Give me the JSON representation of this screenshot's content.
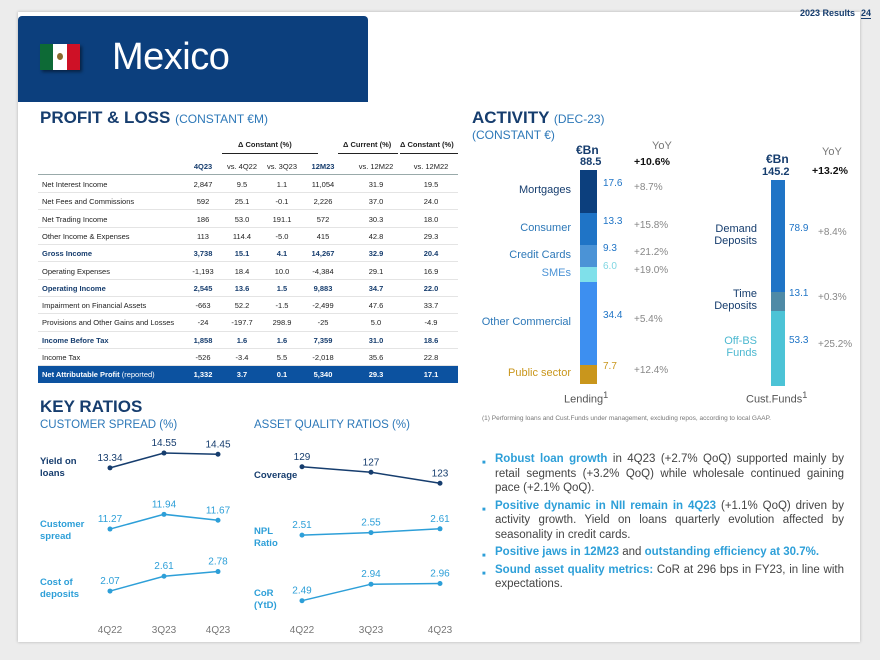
{
  "header": {
    "results_label": "2023 Results",
    "page_number": "24"
  },
  "banner": {
    "country": "Mexico",
    "flag_icon": "mexico-flag-icon"
  },
  "profit_loss": {
    "title": "PROFIT & LOSS",
    "subtitle": "(CONSTANT €M)",
    "group_headers": [
      "Δ Constant (%)",
      "Δ Current (%)",
      "Δ Constant (%)"
    ],
    "columns": [
      "4Q23",
      "vs. 4Q22",
      "vs. 3Q23",
      "12M23",
      "vs. 12M22",
      "vs. 12M22"
    ],
    "rows": [
      {
        "label": "Net Interest Income",
        "values": [
          "2,847",
          "9.5",
          "1.1",
          "11,054",
          "31.9",
          "19.5"
        ],
        "style": "normal"
      },
      {
        "label": "Net Fees and Commissions",
        "values": [
          "592",
          "25.1",
          "-0.1",
          "2,226",
          "37.0",
          "24.0"
        ],
        "style": "normal"
      },
      {
        "label": "Net Trading Income",
        "values": [
          "186",
          "53.0",
          "191.1",
          "572",
          "30.3",
          "18.0"
        ],
        "style": "normal"
      },
      {
        "label": "Other Income & Expenses",
        "values": [
          "113",
          "114.4",
          "-5.0",
          "415",
          "42.8",
          "29.3"
        ],
        "style": "normal"
      },
      {
        "label": "Gross Income",
        "values": [
          "3,738",
          "15.1",
          "4.1",
          "14,267",
          "32.9",
          "20.4"
        ],
        "style": "bold"
      },
      {
        "label": "Operating Expenses",
        "values": [
          "-1,193",
          "18.4",
          "10.0",
          "-4,384",
          "29.1",
          "16.9"
        ],
        "style": "normal"
      },
      {
        "label": "Operating Income",
        "values": [
          "2,545",
          "13.6",
          "1.5",
          "9,883",
          "34.7",
          "22.0"
        ],
        "style": "bold"
      },
      {
        "label": "Impairment on Financial Assets",
        "values": [
          "-663",
          "52.2",
          "-1.5",
          "-2,499",
          "47.6",
          "33.7"
        ],
        "style": "normal"
      },
      {
        "label": "Provisions and Other Gains and Losses",
        "values": [
          "-24",
          "-197.7",
          "298.9",
          "-25",
          "5.0",
          "-4.9"
        ],
        "style": "normal"
      },
      {
        "label": "Income Before Tax",
        "values": [
          "1,858",
          "1.6",
          "1.6",
          "7,359",
          "31.0",
          "18.6"
        ],
        "style": "bold"
      },
      {
        "label": "Income Tax",
        "values": [
          "-526",
          "-3.4",
          "5.5",
          "-2,018",
          "35.6",
          "22.8"
        ],
        "style": "normal"
      },
      {
        "label": "Net Attributable Profit",
        "label_suffix": " (reported)",
        "values": [
          "1,332",
          "3.7",
          "0.1",
          "5,340",
          "29.3",
          "17.1"
        ],
        "style": "blue"
      }
    ]
  },
  "key_ratios": {
    "title": "KEY RATIOS",
    "customer_spread_title": "CUSTOMER SPREAD (%)",
    "asset_quality_title": "ASSET QUALITY RATIOS (%)",
    "quarters": [
      "4Q22",
      "3Q23",
      "4Q23"
    ],
    "customer_spread": [
      {
        "label": "Yield on loans",
        "values": [
          "13.34",
          "14.55",
          "14.45"
        ],
        "color": "#163d6e"
      },
      {
        "label": "Customer spread",
        "values": [
          "11.27",
          "11.94",
          "11.67"
        ],
        "color": "#2d9fd8"
      },
      {
        "label": "Cost of deposits",
        "values": [
          "2.07",
          "2.61",
          "2.78"
        ],
        "color": "#2d9fd8"
      }
    ],
    "asset_quality": [
      {
        "label": "Coverage",
        "values": [
          "129",
          "127",
          "123"
        ],
        "color": "#163d6e"
      },
      {
        "label": "NPL Ratio",
        "values": [
          "2.51",
          "2.55",
          "2.61"
        ],
        "color": "#2d9fd8"
      },
      {
        "label": "CoR (YtD)",
        "values": [
          "2.49",
          "2.94",
          "2.96"
        ],
        "color": "#2d9fd8"
      }
    ]
  },
  "activity": {
    "title": "ACTIVITY",
    "subtitle_1": "(DEC-23)",
    "subtitle_2": "(CONSTANT €)",
    "unit": "€Bn",
    "yoy_header": "YoY",
    "lending": {
      "axis_label": "Lending",
      "total": "88.5",
      "total_yoy": "+10.6%",
      "segments": [
        {
          "label": "Mortgages",
          "value": "17.6",
          "yoy": "+8.7%",
          "color": "#0c3f7d"
        },
        {
          "label": "Consumer",
          "value": "13.3",
          "yoy": "+15.8%",
          "color": "#1f74c6"
        },
        {
          "label": "Credit Cards",
          "value": "9.3",
          "yoy": "+21.2%",
          "color": "#4b93d6"
        },
        {
          "label": "SMEs",
          "value": "6.0",
          "yoy": "+19.0%",
          "color": "#7fe0ea"
        },
        {
          "label": "Other Commercial",
          "value": "34.4",
          "yoy": "+5.4%",
          "color": "#3d8ff0"
        },
        {
          "label": "Public sector",
          "value": "7.7",
          "yoy": "+12.4%",
          "color": "#c9961c"
        }
      ]
    },
    "funds": {
      "axis_label": "Cust.Funds",
      "total": "145.2",
      "total_yoy": "+13.2%",
      "segments": [
        {
          "label": "Demand Deposits",
          "value": "78.9",
          "yoy": "+8.4%",
          "color": "#1f74c6"
        },
        {
          "label": "Time Deposits",
          "value": "13.1",
          "yoy": "+0.3%",
          "color": "#4e8aa6"
        },
        {
          "label": "Off-BS Funds",
          "value": "53.3",
          "yoy": "+25.2%",
          "color": "#4cc3d6"
        }
      ]
    },
    "footnote": "(1) Performing loans and Cust.Funds under management, excluding repos, according to local GAAP."
  },
  "bullets": [
    {
      "bold": "Robust loan growth",
      "text": " in 4Q23 (+2.7% QoQ) supported mainly by retail segments (+3.2% QoQ) while wholesale continued gaining pace (+2.1% QoQ)."
    },
    {
      "bold": "Positive dynamic in NII remain in 4Q23",
      "text": " (+1.1% QoQ) driven by activity growth. Yield on loans quarterly evolution affected by seasonality in credit cards."
    },
    {
      "bold": "Positive jaws in 12M23",
      "text": " and ",
      "bold2": "outstanding efficiency at 30.7%."
    },
    {
      "bold": "Sound asset quality metrics:",
      "text": " CoR at 296 bps in FY23, in line with expectations."
    }
  ]
}
